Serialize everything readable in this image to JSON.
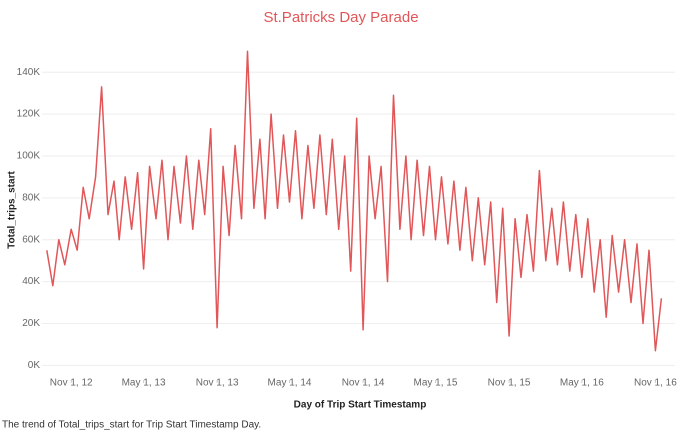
{
  "chart_data": {
    "type": "line",
    "title": "St.Patricks Day Parade",
    "x_label": "Day of Trip Start Timestamp",
    "y_label": "Total_trips_start",
    "caption": "The trend of Total_trips_start for Trip Start Timestamp Day.",
    "x": [
      "2012-09-01",
      "2012-09-16",
      "2012-10-01",
      "2012-10-16",
      "2012-11-01",
      "2012-11-16",
      "2012-12-01",
      "2012-12-16",
      "2013-01-01",
      "2013-01-16",
      "2013-02-01",
      "2013-02-16",
      "2013-03-01",
      "2013-03-16",
      "2013-04-01",
      "2013-04-16",
      "2013-05-01",
      "2013-05-16",
      "2013-06-01",
      "2013-06-16",
      "2013-07-01",
      "2013-07-16",
      "2013-08-01",
      "2013-08-16",
      "2013-09-01",
      "2013-09-16",
      "2013-10-01",
      "2013-10-16",
      "2013-11-01",
      "2013-11-16",
      "2013-12-01",
      "2013-12-16",
      "2014-01-01",
      "2014-01-16",
      "2014-02-01",
      "2014-02-16",
      "2014-03-01",
      "2014-03-16",
      "2014-04-01",
      "2014-04-16",
      "2014-05-01",
      "2014-05-16",
      "2014-06-01",
      "2014-06-16",
      "2014-07-01",
      "2014-07-16",
      "2014-08-01",
      "2014-08-16",
      "2014-09-01",
      "2014-09-16",
      "2014-10-01",
      "2014-10-16",
      "2014-11-01",
      "2014-11-16",
      "2014-12-01",
      "2014-12-16",
      "2015-01-01",
      "2015-01-16",
      "2015-02-01",
      "2015-02-16",
      "2015-03-01",
      "2015-03-16",
      "2015-04-01",
      "2015-04-16",
      "2015-05-01",
      "2015-05-16",
      "2015-06-01",
      "2015-06-16",
      "2015-07-01",
      "2015-07-16",
      "2015-08-01",
      "2015-08-16",
      "2015-09-01",
      "2015-09-16",
      "2015-10-01",
      "2015-10-16",
      "2015-11-01",
      "2015-11-16",
      "2015-12-01",
      "2015-12-16",
      "2016-01-01",
      "2016-01-16",
      "2016-02-01",
      "2016-02-16",
      "2016-03-01",
      "2016-03-16",
      "2016-04-01",
      "2016-04-16",
      "2016-05-01",
      "2016-05-16",
      "2016-06-01",
      "2016-06-16",
      "2016-07-01",
      "2016-07-16",
      "2016-08-01",
      "2016-08-16",
      "2016-09-01",
      "2016-09-16",
      "2016-10-01",
      "2016-10-16",
      "2016-11-01",
      "2016-11-16"
    ],
    "series": [
      {
        "name": "Total_trips_start",
        "color": "#e15759",
        "values": [
          55000,
          38000,
          60000,
          48000,
          65000,
          55000,
          85000,
          70000,
          90000,
          133000,
          72000,
          88000,
          60000,
          90000,
          65000,
          92000,
          46000,
          95000,
          70000,
          98000,
          60000,
          95000,
          68000,
          100000,
          65000,
          98000,
          72000,
          113000,
          18000,
          95000,
          62000,
          105000,
          70000,
          150000,
          75000,
          108000,
          70000,
          120000,
          75000,
          110000,
          78000,
          112000,
          70000,
          105000,
          75000,
          110000,
          72000,
          108000,
          65000,
          100000,
          45000,
          118000,
          17000,
          100000,
          70000,
          95000,
          40000,
          129000,
          65000,
          100000,
          60000,
          98000,
          62000,
          95000,
          60000,
          90000,
          58000,
          88000,
          55000,
          85000,
          50000,
          80000,
          48000,
          78000,
          30000,
          75000,
          14000,
          70000,
          42000,
          72000,
          45000,
          93000,
          50000,
          75000,
          48000,
          78000,
          45000,
          72000,
          42000,
          70000,
          35000,
          60000,
          23000,
          62000,
          35000,
          60000,
          30000,
          58000,
          20000,
          55000,
          7000,
          32000
        ]
      }
    ],
    "xlim": [
      "2012-08-20",
      "2016-12-20"
    ],
    "xticks": [
      {
        "value": "2012-11-01",
        "label": "Nov 1, 12"
      },
      {
        "value": "2013-05-01",
        "label": "May 1, 13"
      },
      {
        "value": "2013-11-01",
        "label": "Nov 1, 13"
      },
      {
        "value": "2014-05-01",
        "label": "May 1, 14"
      },
      {
        "value": "2014-11-01",
        "label": "Nov 1, 14"
      },
      {
        "value": "2015-05-01",
        "label": "May 1, 15"
      },
      {
        "value": "2015-11-01",
        "label": "Nov 1, 15"
      },
      {
        "value": "2016-05-01",
        "label": "May 1, 16"
      },
      {
        "value": "2016-11-01",
        "label": "Nov 1, 16"
      }
    ],
    "ylim": [
      -7000,
      153000
    ],
    "yticks": [
      {
        "value": 0,
        "label": "0K"
      },
      {
        "value": 20000,
        "label": "20K"
      },
      {
        "value": 40000,
        "label": "40K"
      },
      {
        "value": 60000,
        "label": "60K"
      },
      {
        "value": 80000,
        "label": "80K"
      },
      {
        "value": 100000,
        "label": "100K"
      },
      {
        "value": 120000,
        "label": "120K"
      },
      {
        "value": 140000,
        "label": "140K"
      }
    ],
    "grid": true
  }
}
